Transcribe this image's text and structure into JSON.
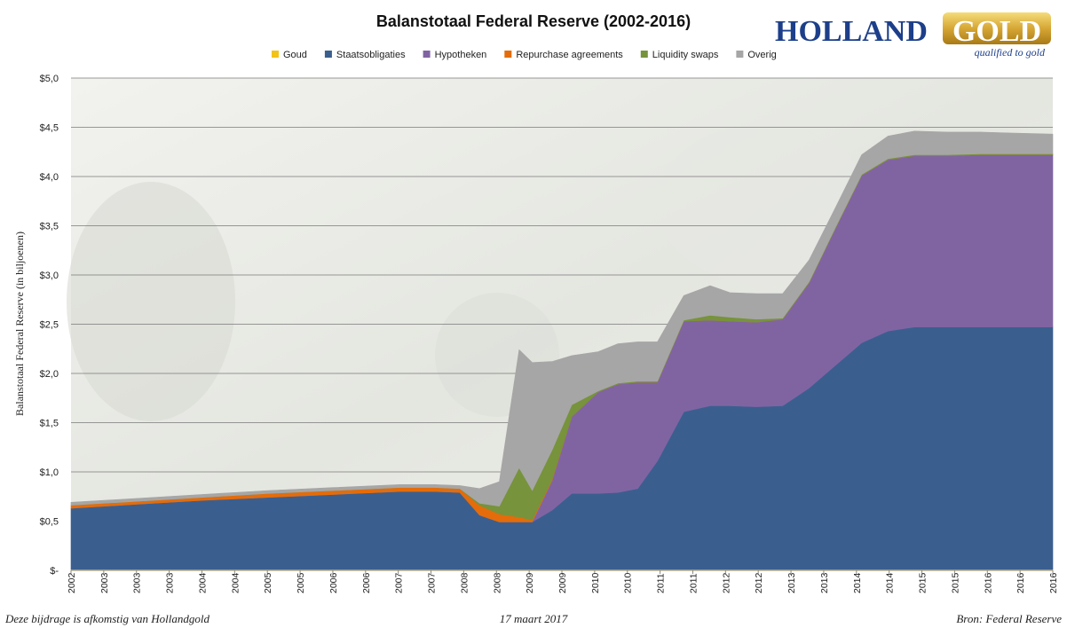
{
  "chart_data": {
    "type": "area",
    "stacked": true,
    "title": "Balanstotaal Federal Reserve (2002-2016)",
    "xlabel": "",
    "ylabel": "Balanstotaal Federal Reserve (in biljoenen)",
    "ylim": [
      0,
      5
    ],
    "xlim": [
      2002.0,
      2016.9
    ],
    "y_ticks": [
      {
        "v": 0,
        "label": "$-"
      },
      {
        "v": 0.5,
        "label": "$0,5"
      },
      {
        "v": 1,
        "label": "$1,0"
      },
      {
        "v": 1.5,
        "label": "$1,5"
      },
      {
        "v": 2,
        "label": "$2,0"
      },
      {
        "v": 2.5,
        "label": "$2,5"
      },
      {
        "v": 3,
        "label": "$3,0"
      },
      {
        "v": 3.5,
        "label": "$3,5"
      },
      {
        "v": 4,
        "label": "$4,0"
      },
      {
        "v": 4.5,
        "label": "$4,5"
      },
      {
        "v": 5,
        "label": "$5,0"
      }
    ],
    "x_tick_labels": [
      "2002",
      "2003",
      "2003",
      "2003",
      "2004",
      "2004",
      "2005",
      "2005",
      "2006",
      "2006",
      "2007",
      "2007",
      "2008",
      "2008",
      "2009",
      "2009",
      "2010",
      "2010",
      "2011",
      "2011",
      "2012",
      "2012",
      "2013",
      "2013",
      "2014",
      "2014",
      "2015",
      "2015",
      "2016",
      "2016",
      "2016"
    ],
    "grid": "horizontal",
    "legend_position": "top",
    "x": [
      2002.0,
      2003.0,
      2004.0,
      2005.0,
      2006.0,
      2007.0,
      2007.5,
      2007.9,
      2008.2,
      2008.5,
      2008.8,
      2009.0,
      2009.3,
      2009.6,
      2010.0,
      2010.3,
      2010.6,
      2010.9,
      2011.3,
      2011.7,
      2012.0,
      2012.4,
      2012.8,
      2013.2,
      2013.6,
      2014.0,
      2014.4,
      2014.8,
      2015.3,
      2015.8,
      2016.3,
      2016.9
    ],
    "series": [
      {
        "name": "Goud",
        "color": "#f2c318",
        "values": [
          0.011,
          0.011,
          0.011,
          0.011,
          0.011,
          0.011,
          0.011,
          0.011,
          0.011,
          0.011,
          0.011,
          0.011,
          0.011,
          0.011,
          0.011,
          0.011,
          0.011,
          0.011,
          0.011,
          0.011,
          0.011,
          0.011,
          0.011,
          0.011,
          0.011,
          0.011,
          0.011,
          0.011,
          0.011,
          0.011,
          0.011,
          0.011
        ]
      },
      {
        "name": "Staatsobligaties",
        "color": "#3a5f8f",
        "values": [
          0.62,
          0.66,
          0.7,
          0.73,
          0.76,
          0.79,
          0.79,
          0.78,
          0.55,
          0.48,
          0.48,
          0.48,
          0.6,
          0.77,
          0.77,
          0.78,
          0.82,
          1.1,
          1.6,
          1.66,
          1.66,
          1.65,
          1.66,
          1.84,
          2.07,
          2.3,
          2.42,
          2.46,
          2.46,
          2.46,
          2.46,
          2.46
        ]
      },
      {
        "name": "Hypotheken",
        "color": "#8064a2",
        "values": [
          0,
          0,
          0,
          0,
          0,
          0,
          0,
          0,
          0,
          0,
          0,
          0,
          0.3,
          0.78,
          1.03,
          1.1,
          1.08,
          0.8,
          0.92,
          0.87,
          0.86,
          0.86,
          0.88,
          1.07,
          1.39,
          1.7,
          1.74,
          1.74,
          1.74,
          1.75,
          1.75,
          1.75
        ]
      },
      {
        "name": "Repurchase agreements",
        "color": "#e46c0a",
        "values": [
          0.03,
          0.03,
          0.03,
          0.04,
          0.04,
          0.04,
          0.04,
          0.04,
          0.1,
          0.08,
          0.05,
          0.02,
          0.01,
          0,
          0,
          0,
          0,
          0,
          0,
          0,
          0,
          0,
          0,
          0,
          0,
          0,
          0,
          0,
          0,
          0,
          0,
          0
        ]
      },
      {
        "name": "Liquidity swaps",
        "color": "#77933c",
        "values": [
          0,
          0,
          0,
          0,
          0,
          0,
          0,
          0,
          0.02,
          0.08,
          0.5,
          0.3,
          0.3,
          0.12,
          0.01,
          0.01,
          0.01,
          0.01,
          0.01,
          0.05,
          0.04,
          0.03,
          0.01,
          0.01,
          0.01,
          0.01,
          0.01,
          0.01,
          0.01,
          0.01,
          0.01,
          0.01
        ]
      },
      {
        "name": "Overig",
        "color": "#a6a6a6",
        "values": [
          0.03,
          0.03,
          0.03,
          0.03,
          0.03,
          0.03,
          0.03,
          0.03,
          0.15,
          0.25,
          1.2,
          1.3,
          0.9,
          0.5,
          0.4,
          0.4,
          0.4,
          0.4,
          0.25,
          0.3,
          0.25,
          0.26,
          0.25,
          0.22,
          0.2,
          0.2,
          0.23,
          0.24,
          0.23,
          0.22,
          0.21,
          0.2
        ]
      }
    ]
  },
  "logo": {
    "holland": "HOLLAND",
    "gold": "GOLD",
    "tagline": "qualified to gold"
  },
  "footer": {
    "left": "Deze bijdrage is afkomstig van Hollandgold",
    "center": "17 maart 2017",
    "right": "Bron: Federal Reserve"
  }
}
